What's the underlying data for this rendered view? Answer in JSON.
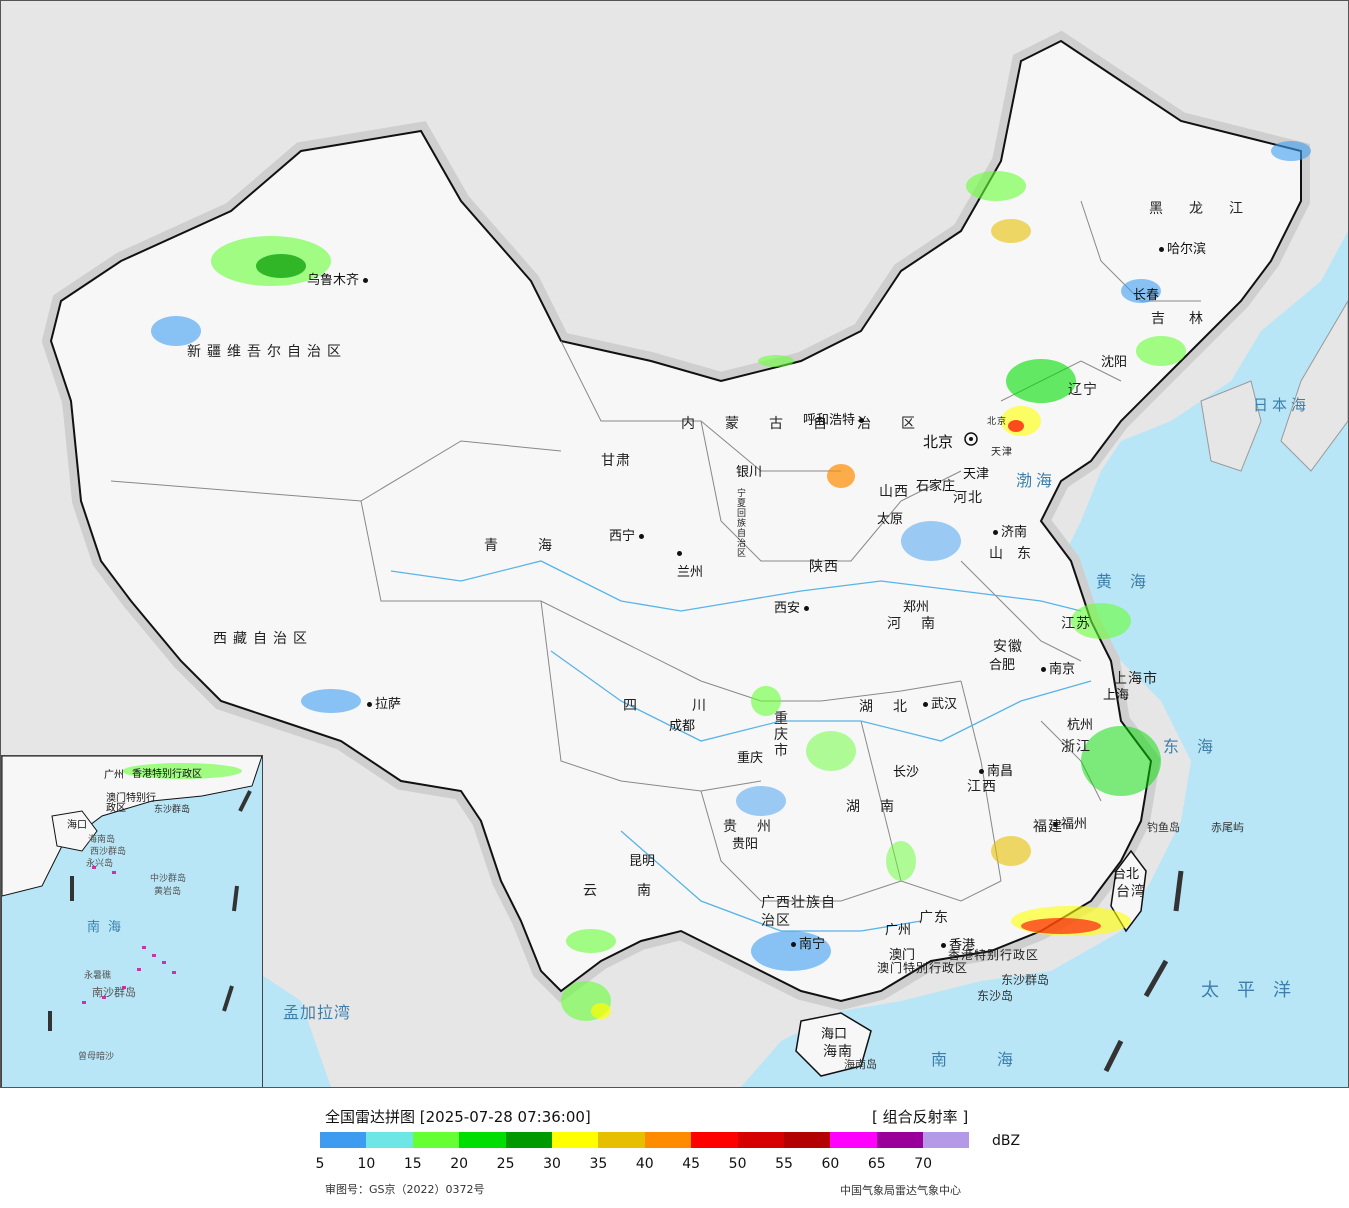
{
  "legend": {
    "title": "全国雷达拼图 [2025-07-28 07:36:00]",
    "product": "[ 组合反射率 ]",
    "unit": "dBZ",
    "ticks": [
      "5",
      "10",
      "15",
      "20",
      "25",
      "30",
      "35",
      "40",
      "45",
      "50",
      "55",
      "60",
      "65",
      "70"
    ],
    "colors": [
      "#3d9cf0",
      "#6ee6e6",
      "#66ff33",
      "#00dd00",
      "#009900",
      "#ffff00",
      "#e6c000",
      "#ff8c00",
      "#ff0000",
      "#d60000",
      "#b30000",
      "#ff00ff",
      "#990099",
      "#b399e6"
    ],
    "review_number": "审图号：GS京（2022）0372号",
    "organization": "中国气象局雷达气象中心"
  },
  "provinces": [
    "新疆维吾尔自治区",
    "西藏自治区",
    "青海",
    "甘肃",
    "内蒙古自治区",
    "黑龙江",
    "吉林",
    "辽宁",
    "河北",
    "山西",
    "陕西",
    "宁夏回族自治区",
    "四川",
    "重庆市",
    "云南",
    "贵州",
    "广西壮族自治区",
    "广东",
    "湖南",
    "湖北",
    "河南",
    "山东",
    "江苏",
    "安徽",
    "浙江",
    "江西",
    "福建",
    "台湾",
    "海南",
    "上海市",
    "北京",
    "天津",
    "香港特别行政区",
    "澳门特别行政区"
  ],
  "cities": [
    "乌鲁木齐",
    "拉萨",
    "西宁",
    "兰州",
    "银川",
    "呼和浩特",
    "北京",
    "天津",
    "石家庄",
    "太原",
    "济南",
    "郑州",
    "西安",
    "成都",
    "重庆",
    "贵阳",
    "昆明",
    "南宁",
    "广州",
    "澳门",
    "香港",
    "海口",
    "长沙",
    "武汉",
    "南昌",
    "合肥",
    "南京",
    "上海",
    "杭州",
    "福州",
    "台北",
    "沈阳",
    "长春",
    "哈尔滨"
  ],
  "seas": [
    "日本海",
    "渤海",
    "黄海",
    "东海",
    "太平洋",
    "南海",
    "孟加拉湾"
  ],
  "islands": [
    "东沙群岛",
    "东沙岛",
    "海南岛",
    "钓鱼岛",
    "赤尾屿"
  ],
  "inset_labels": [
    "广州",
    "香港特别行政区",
    "澳门特别行政区",
    "东沙群岛",
    "海口",
    "海南岛",
    "西沙群岛",
    "永兴岛",
    "中沙群岛",
    "黄岩岛",
    "南海",
    "南沙群岛",
    "永暑礁",
    "曾母暗沙"
  ]
}
